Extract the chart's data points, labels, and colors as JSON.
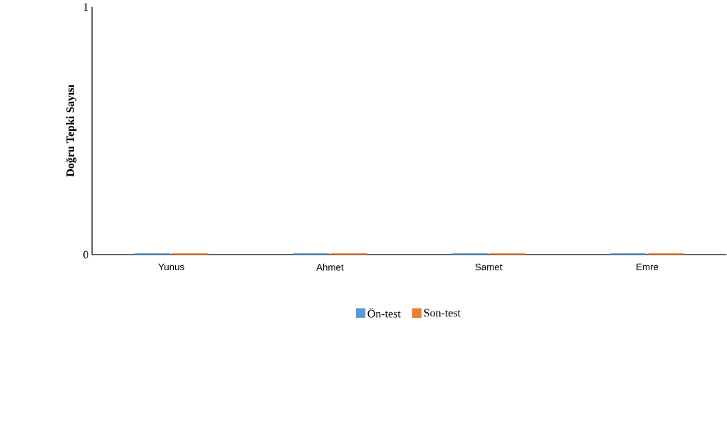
{
  "chart_data": {
    "type": "bar",
    "ylabel": "Doğru Tepki Sayısı",
    "categories": [
      "Yunus",
      "Ahmet",
      "Samet",
      "Emre"
    ],
    "series": [
      {
        "name": "Ön-test",
        "color": "#5b9bd5",
        "values": [
          0,
          0,
          0,
          0
        ]
      },
      {
        "name": "Son-test",
        "color": "#ed7d31",
        "values": [
          0,
          0,
          0,
          0
        ]
      }
    ],
    "ylim": [
      0,
      1
    ],
    "yticks": [
      0,
      1
    ],
    "legend": "bottom"
  }
}
